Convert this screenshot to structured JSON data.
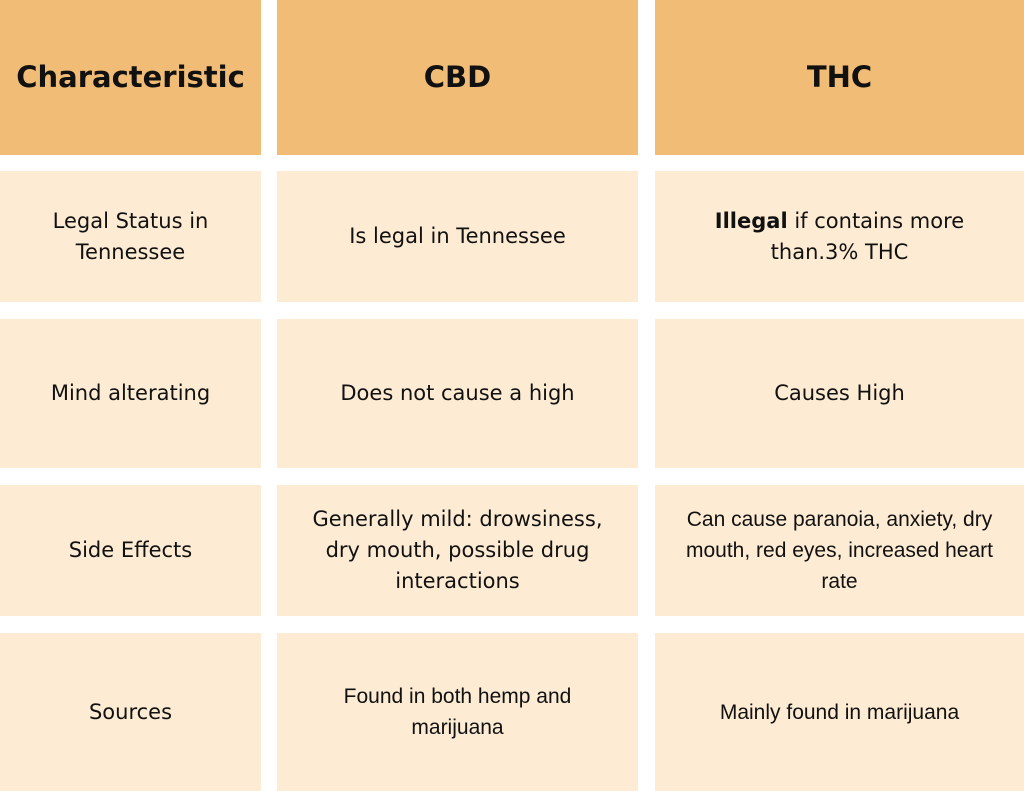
{
  "table": {
    "headers": [
      "Characteristic",
      "CBD",
      "THC"
    ],
    "rows": [
      {
        "characteristic": "Legal Status in Tennessee",
        "cbd": "Is legal in Tennessee",
        "thc_bold": "Illegal",
        "thc_rest": " if contains more than.3% THC"
      },
      {
        "characteristic": "Mind alterating",
        "cbd": "Does not cause a high",
        "thc": "Causes High"
      },
      {
        "characteristic": "Side Effects",
        "cbd": "Generally mild: drowsiness, dry mouth, possible drug interactions",
        "thc": "Can cause paranoia, anxiety, dry mouth, red eyes, increased heart rate"
      },
      {
        "characteristic": "Sources",
        "cbd": "Found in both hemp and marijuana",
        "thc": "Mainly found in marijuana"
      }
    ]
  },
  "colors": {
    "header_bg": "#f1bd76",
    "cell_bg": "#fdebd3",
    "text": "#111111"
  }
}
